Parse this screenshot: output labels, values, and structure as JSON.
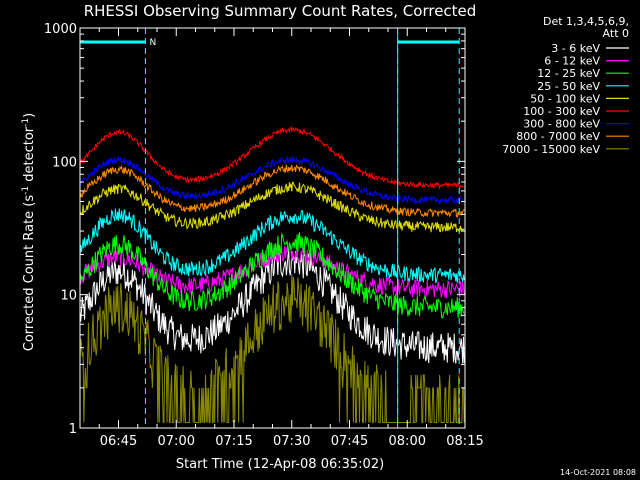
{
  "chart_data": {
    "type": "line",
    "title": "RHESSI Observing Summary Count Rates, Corrected",
    "xlabel": "Start Time (12-Apr-08 06:35:02)",
    "ylabel_main": "Corrected Count Rate (s",
    "ylabel_sup1": "-1",
    "ylabel_mid": " detector",
    "ylabel_sup2": "-1",
    "ylabel_end": ")",
    "y_scale": "log",
    "ylim": [
      1,
      1000
    ],
    "xlim_minutes": [
      0,
      100
    ],
    "x_ticks": [
      "06:45",
      "07:00",
      "07:15",
      "07:30",
      "07:45",
      "08:00",
      "08:15"
    ],
    "x_tick_minutes": [
      10,
      25,
      40,
      55,
      70,
      85,
      100
    ],
    "y_ticks": [
      "1",
      "10",
      "100",
      "1000"
    ],
    "y_tick_values": [
      1,
      10,
      100,
      1000
    ],
    "legend_header_1": "Det 1,3,4,5,6,9,",
    "legend_header_2": "Att 0",
    "legend_position": "right",
    "night_label": "N",
    "night_intervals_minutes": [
      [
        0,
        17
      ],
      [
        82.5,
        98.5
      ]
    ],
    "saa_markers_minutes": [
      82.5
    ],
    "series": [
      {
        "name": "3 - 6 keV",
        "color": "#ffffff",
        "peak1": 15,
        "peak2": 18,
        "base": 4,
        "noise": 0.12,
        "hardfloor": false
      },
      {
        "name": "6 - 12 keV",
        "color": "#ff00ff",
        "peak1": 19,
        "peak2": 21,
        "base": 11,
        "noise": 0.07,
        "hardfloor": false
      },
      {
        "name": "12 - 25 keV",
        "color": "#00ff00",
        "peak1": 24,
        "peak2": 25,
        "base": 8,
        "noise": 0.08,
        "hardfloor": false
      },
      {
        "name": "25 - 50 keV",
        "color": "#00ffff",
        "peak1": 40,
        "peak2": 39,
        "base": 14,
        "noise": 0.06,
        "hardfloor": false
      },
      {
        "name": "50 - 100 keV",
        "color": "#dddd00",
        "peak1": 62,
        "peak2": 64,
        "base": 32,
        "noise": 0.04,
        "hardfloor": false
      },
      {
        "name": "100 - 300 keV",
        "color": "#ff0000",
        "peak1": 165,
        "peak2": 172,
        "base": 66,
        "noise": 0.02,
        "hardfloor": false
      },
      {
        "name": "300 - 800 keV",
        "color": "#0000ff",
        "peak1": 103,
        "peak2": 103,
        "base": 51,
        "noise": 0.025,
        "hardfloor": false
      },
      {
        "name": "800 - 7000 keV",
        "color": "#ff8800",
        "peak1": 87,
        "peak2": 89,
        "base": 41,
        "noise": 0.03,
        "hardfloor": false
      },
      {
        "name": "7000 - 15000 keV",
        "color": "#888800",
        "peak1": 8,
        "peak2": 9,
        "base": 1.5,
        "noise": 0.2,
        "hardfloor": true
      }
    ],
    "grid": false
  },
  "timestamp": "14-Oct-2021 08:08"
}
